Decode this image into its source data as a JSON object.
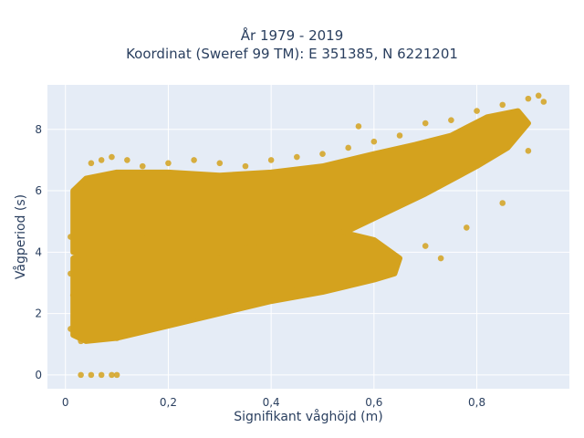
{
  "chart_data": {
    "type": "scatter",
    "title_line1": "År 1979 - 2019",
    "title_line2": "Koordinat (Sweref 99 TM): E 351385, N 6221201",
    "xlabel": "Signifikant våghöjd (m)",
    "ylabel": "Vågperiod (s)",
    "xlim": [
      -0.035,
      0.98
    ],
    "ylim": [
      -0.45,
      9.45
    ],
    "x_ticks": [
      0,
      0.2,
      0.4,
      0.6,
      0.8
    ],
    "x_tick_labels": [
      "0",
      "0,2",
      "0,4",
      "0,6",
      "0,8"
    ],
    "y_ticks": [
      0,
      2,
      4,
      6,
      8
    ],
    "y_tick_labels": [
      "0",
      "2",
      "4",
      "6",
      "8"
    ],
    "grid": true,
    "marker_color": "#d4a21e",
    "background_color": "#e5ecf6",
    "points": [
      [
        0.03,
        0
      ],
      [
        0.05,
        0
      ],
      [
        0.07,
        0
      ],
      [
        0.09,
        0
      ],
      [
        0.1,
        0
      ],
      [
        0.01,
        1.5
      ],
      [
        0.01,
        3.3
      ],
      [
        0.01,
        4.5
      ],
      [
        0.015,
        2.6
      ],
      [
        0.03,
        1.1
      ],
      [
        0.03,
        6.1
      ],
      [
        0.05,
        6.9
      ],
      [
        0.07,
        7.0
      ],
      [
        0.09,
        7.1
      ],
      [
        0.12,
        7.0
      ],
      [
        0.15,
        6.8
      ],
      [
        0.2,
        6.9
      ],
      [
        0.25,
        7.0
      ],
      [
        0.3,
        6.9
      ],
      [
        0.35,
        6.8
      ],
      [
        0.4,
        7.0
      ],
      [
        0.45,
        7.1
      ],
      [
        0.5,
        7.2
      ],
      [
        0.55,
        7.4
      ],
      [
        0.57,
        8.1
      ],
      [
        0.6,
        7.6
      ],
      [
        0.65,
        7.8
      ],
      [
        0.7,
        8.2
      ],
      [
        0.75,
        8.3
      ],
      [
        0.8,
        8.6
      ],
      [
        0.85,
        8.8
      ],
      [
        0.9,
        9.0
      ],
      [
        0.92,
        9.1
      ],
      [
        0.93,
        8.9
      ],
      [
        0.4,
        2.6
      ],
      [
        0.45,
        2.8
      ],
      [
        0.5,
        3.0
      ],
      [
        0.55,
        3.2
      ],
      [
        0.6,
        3.4
      ],
      [
        0.64,
        3.4
      ],
      [
        0.7,
        4.2
      ],
      [
        0.78,
        4.8
      ],
      [
        0.85,
        5.6
      ],
      [
        0.9,
        7.3
      ],
      [
        0.73,
        3.8
      ],
      [
        0.1,
        1.2
      ],
      [
        0.15,
        1.5
      ],
      [
        0.2,
        1.7
      ],
      [
        0.25,
        1.9
      ],
      [
        0.3,
        2.2
      ],
      [
        0.35,
        2.4
      ],
      [
        0.05,
        3.5
      ],
      [
        0.1,
        4.0
      ],
      [
        0.15,
        4.6
      ],
      [
        0.2,
        5.2
      ],
      [
        0.25,
        5.5
      ],
      [
        0.3,
        3.8
      ],
      [
        0.35,
        4.3
      ],
      [
        0.4,
        5.0
      ],
      [
        0.45,
        5.5
      ],
      [
        0.5,
        6.0
      ],
      [
        0.55,
        6.2
      ],
      [
        0.6,
        6.5
      ],
      [
        0.65,
        6.8
      ],
      [
        0.7,
        7.2
      ],
      [
        0.75,
        7.5
      ],
      [
        0.8,
        7.9
      ],
      [
        0.85,
        8.2
      ]
    ]
  }
}
